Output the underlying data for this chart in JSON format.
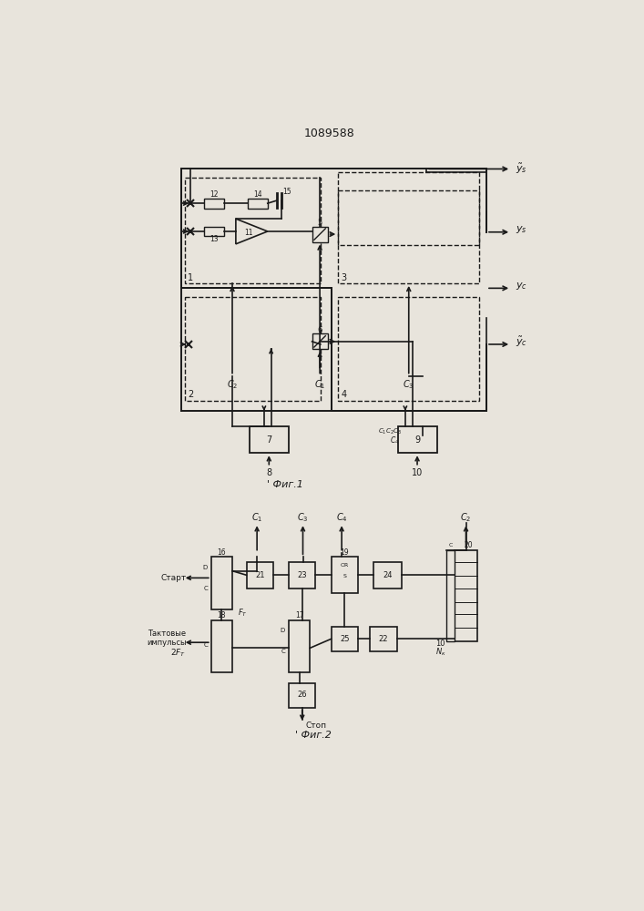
{
  "title": "1089588",
  "fig1_caption": "Фиг.1",
  "fig2_caption": "Фиг.2",
  "bg_color": "#e8e4dc",
  "line_color": "#1a1a1a"
}
